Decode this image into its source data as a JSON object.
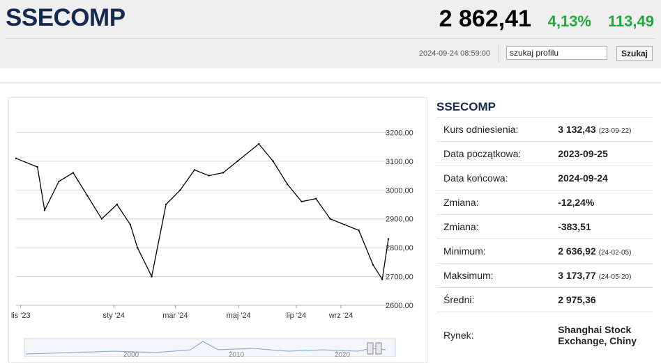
{
  "header": {
    "ticker": "SSECOMP",
    "price": "2 862,41",
    "change_pct": "4,13%",
    "change_abs": "113,49",
    "timestamp": "2024-09-24 08:59:00",
    "search": {
      "value": "szukaj profilu",
      "button_label": "Szukaj"
    }
  },
  "info": {
    "title": "SSECOMP",
    "rows": [
      {
        "label": "Kurs odniesienia:",
        "value": "3 132,43",
        "date": "(23-09-22)"
      },
      {
        "label": "Data początkowa:",
        "value": "2023-09-25"
      },
      {
        "label": "Data końcowa:",
        "value": "2024-09-24"
      },
      {
        "label": "Zmiana:",
        "value": "-12,24%"
      },
      {
        "label": "Zmiana:",
        "value": "-383,51"
      },
      {
        "label": "Minimum:",
        "value": "2 636,92",
        "date": "(24-02-05)"
      },
      {
        "label": "Maksimum:",
        "value": "3 173,77",
        "date": "(24-05-20)"
      },
      {
        "label": "Średni:",
        "value": "2 975,36"
      },
      {
        "label": "Rynek:",
        "value": "Shanghai Stock Exchange, Chiny"
      }
    ]
  },
  "chart_data": {
    "type": "line",
    "ylim": [
      2600,
      3300
    ],
    "y_ticks": [
      {
        "value": 3200,
        "label": "3200,00"
      },
      {
        "value": 3100,
        "label": "3100,00"
      },
      {
        "value": 3000,
        "label": "3000,00"
      },
      {
        "value": 2900,
        "label": "2900,00"
      },
      {
        "value": 2800,
        "label": "2800,00"
      },
      {
        "value": 2700,
        "label": "2700,00"
      },
      {
        "value": 2600,
        "label": "2600,00"
      }
    ],
    "x_ticks": [
      "lis '23",
      "sty '24",
      "mar '24",
      "maj '24",
      "lip '24",
      "wrz '24"
    ],
    "x_tick_positions": [
      0.125,
      0.375,
      0.54,
      0.71,
      0.865,
      0.985
    ],
    "grid": true,
    "legend": "none",
    "series_color": "#000000",
    "x": [
      "2023-09-25",
      "2023-10-16",
      "2023-10-23",
      "2023-11-06",
      "2023-11-20",
      "2023-12-04",
      "2023-12-18",
      "2024-01-02",
      "2024-01-15",
      "2024-01-22",
      "2024-02-05",
      "2024-02-19",
      "2024-03-04",
      "2024-03-18",
      "2024-04-01",
      "2024-04-15",
      "2024-04-29",
      "2024-05-20",
      "2024-06-03",
      "2024-06-17",
      "2024-07-01",
      "2024-07-15",
      "2024-07-29",
      "2024-08-12",
      "2024-08-26",
      "2024-09-09",
      "2024-09-18",
      "2024-09-24"
    ],
    "values": [
      3110,
      3080,
      2930,
      3030,
      3060,
      2980,
      2900,
      2950,
      2880,
      2800,
      2700,
      2950,
      3000,
      3070,
      3050,
      3060,
      3100,
      3160,
      3100,
      3020,
      2960,
      2970,
      2900,
      2880,
      2860,
      2740,
      2690,
      2830
    ],
    "navigator": {
      "labels": [
        "2000",
        "2010",
        "2020"
      ]
    }
  }
}
